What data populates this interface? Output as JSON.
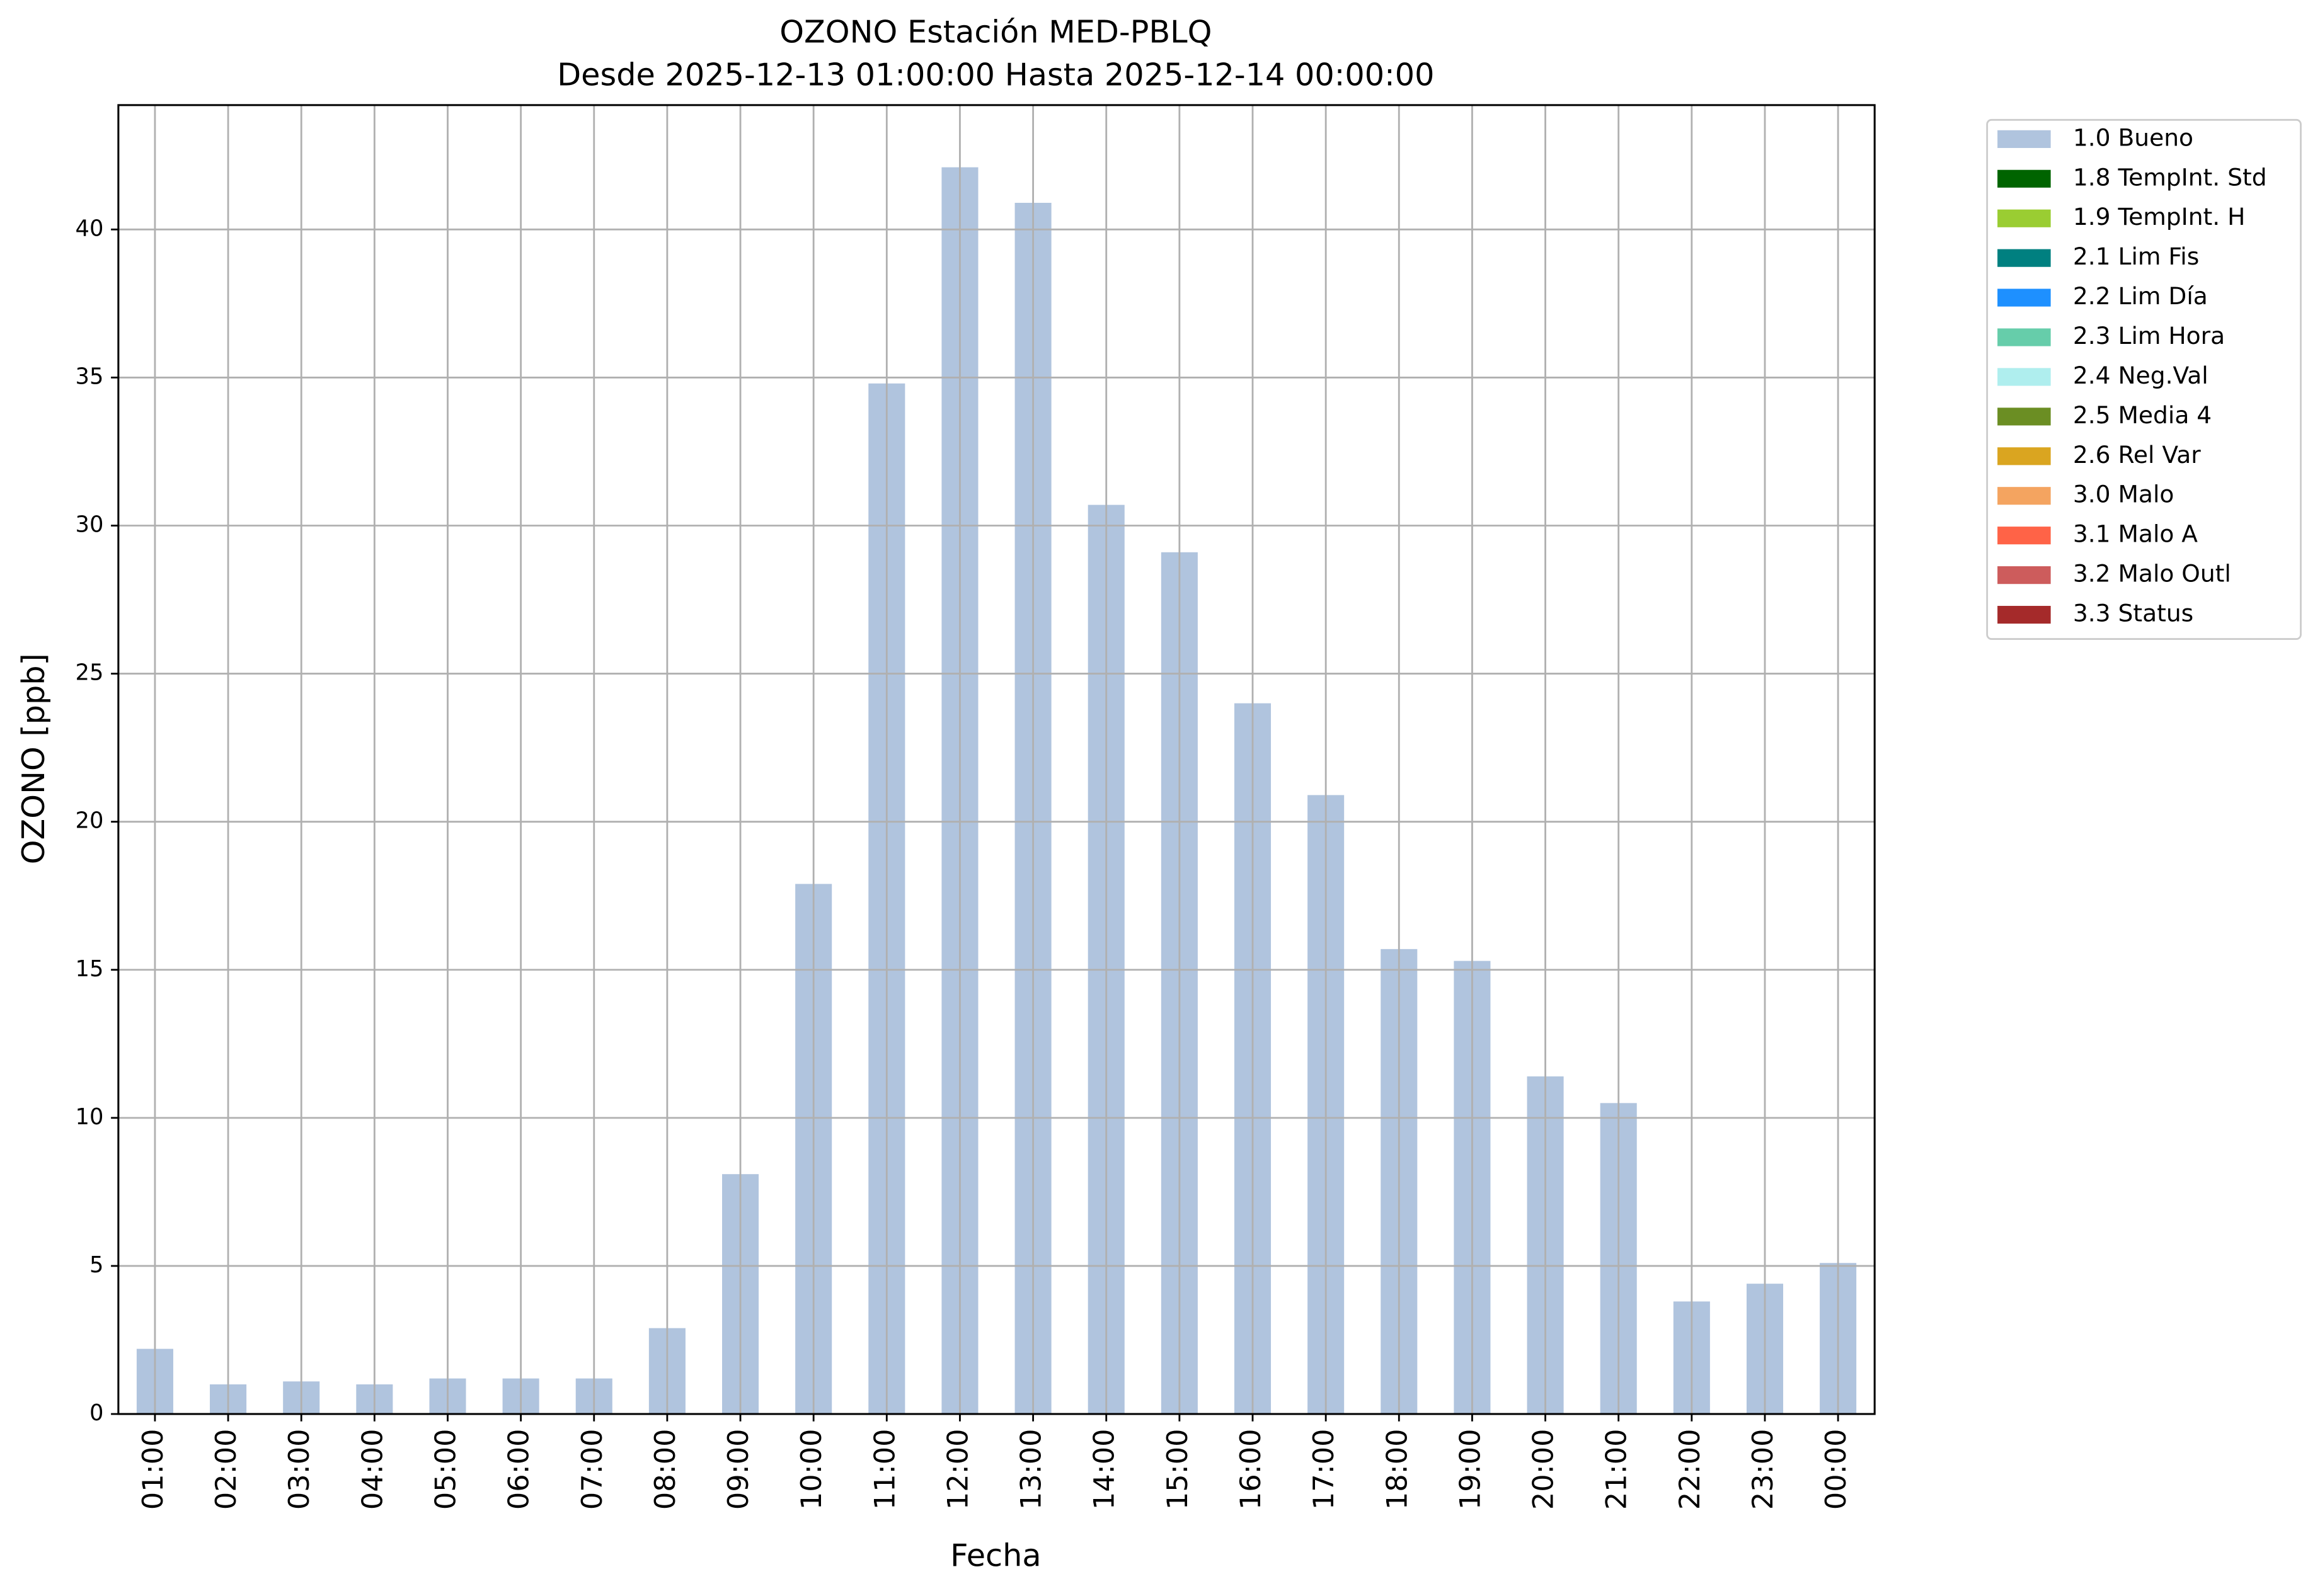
{
  "chart_data": {
    "type": "bar",
    "stacked": true,
    "title": "OZONO Estación MED-PBLQ",
    "subtitle": "Desde 2025-12-13 01:00:00 Hasta 2025-12-14 00:00:00",
    "x_label": "Fecha",
    "y_label": "OZONO [ppb]",
    "categories": [
      "01:00",
      "02:00",
      "03:00",
      "04:00",
      "05:00",
      "06:00",
      "07:00",
      "08:00",
      "09:00",
      "10:00",
      "11:00",
      "12:00",
      "13:00",
      "14:00",
      "15:00",
      "16:00",
      "17:00",
      "18:00",
      "19:00",
      "20:00",
      "21:00",
      "22:00",
      "23:00",
      "00:00"
    ],
    "series": [
      {
        "name": "1.0 Bueno",
        "color": "#b0c4de",
        "values": [
          2.2,
          1.0,
          1.1,
          1.0,
          1.2,
          1.2,
          1.2,
          2.9,
          8.1,
          17.9,
          34.8,
          42.1,
          40.9,
          30.7,
          29.1,
          24.0,
          20.9,
          15.7,
          15.3,
          11.4,
          10.5,
          3.8,
          4.4,
          5.1
        ]
      },
      {
        "name": "1.8 TempInt. Std",
        "color": "#006400",
        "values": [
          0,
          0,
          0,
          0,
          0,
          0,
          0,
          0,
          0,
          0,
          0,
          0,
          0,
          0,
          0,
          0,
          0,
          0,
          0,
          0,
          0,
          0,
          0,
          0
        ]
      },
      {
        "name": "1.9 TempInt. H",
        "color": "#9acd32",
        "values": [
          0,
          0,
          0,
          0,
          0,
          0,
          0,
          0,
          0,
          0,
          0,
          0,
          0,
          0,
          0,
          0,
          0,
          0,
          0,
          0,
          0,
          0,
          0,
          0
        ]
      },
      {
        "name": "2.1 Lim Fis",
        "color": "#008080",
        "values": [
          0,
          0,
          0,
          0,
          0,
          0,
          0,
          0,
          0,
          0,
          0,
          0,
          0,
          0,
          0,
          0,
          0,
          0,
          0,
          0,
          0,
          0,
          0,
          0
        ]
      },
      {
        "name": "2.2 Lim Día",
        "color": "#1e90ff",
        "values": [
          0,
          0,
          0,
          0,
          0,
          0,
          0,
          0,
          0,
          0,
          0,
          0,
          0,
          0,
          0,
          0,
          0,
          0,
          0,
          0,
          0,
          0,
          0,
          0
        ]
      },
      {
        "name": "2.3 Lim Hora",
        "color": "#66cdaa",
        "values": [
          0,
          0,
          0,
          0,
          0,
          0,
          0,
          0,
          0,
          0,
          0,
          0,
          0,
          0,
          0,
          0,
          0,
          0,
          0,
          0,
          0,
          0,
          0,
          0
        ]
      },
      {
        "name": "2.4 Neg.Val",
        "color": "#afeeee",
        "values": [
          0,
          0,
          0,
          0,
          0,
          0,
          0,
          0,
          0,
          0,
          0,
          0,
          0,
          0,
          0,
          0,
          0,
          0,
          0,
          0,
          0,
          0,
          0,
          0
        ]
      },
      {
        "name": "2.5 Media 4",
        "color": "#6b8e23",
        "values": [
          0,
          0,
          0,
          0,
          0,
          0,
          0,
          0,
          0,
          0,
          0,
          0,
          0,
          0,
          0,
          0,
          0,
          0,
          0,
          0,
          0,
          0,
          0,
          0
        ]
      },
      {
        "name": "2.6 Rel Var",
        "color": "#daa520",
        "values": [
          0,
          0,
          0,
          0,
          0,
          0,
          0,
          0,
          0,
          0,
          0,
          0,
          0,
          0,
          0,
          0,
          0,
          0,
          0,
          0,
          0,
          0,
          0,
          0
        ]
      },
      {
        "name": "3.0 Malo",
        "color": "#f4a460",
        "values": [
          0,
          0,
          0,
          0,
          0,
          0,
          0,
          0,
          0,
          0,
          0,
          0,
          0,
          0,
          0,
          0,
          0,
          0,
          0,
          0,
          0,
          0,
          0,
          0
        ]
      },
      {
        "name": "3.1 Malo A",
        "color": "#ff6347",
        "values": [
          0,
          0,
          0,
          0,
          0,
          0,
          0,
          0,
          0,
          0,
          0,
          0,
          0,
          0,
          0,
          0,
          0,
          0,
          0,
          0,
          0,
          0,
          0,
          0
        ]
      },
      {
        "name": "3.2 Malo Outl",
        "color": "#cd5c5c",
        "values": [
          0,
          0,
          0,
          0,
          0,
          0,
          0,
          0,
          0,
          0,
          0,
          0,
          0,
          0,
          0,
          0,
          0,
          0,
          0,
          0,
          0,
          0,
          0,
          0
        ]
      },
      {
        "name": "3.3 Status",
        "color": "#a52a2a",
        "values": [
          0,
          0,
          0,
          0,
          0,
          0,
          0,
          0,
          0,
          0,
          0,
          0,
          0,
          0,
          0,
          0,
          0,
          0,
          0,
          0,
          0,
          0,
          0,
          0
        ]
      }
    ],
    "ylim": [
      0,
      44.2
    ],
    "yticks": [
      0,
      5,
      10,
      15,
      20,
      25,
      30,
      35,
      40
    ],
    "grid": true,
    "legend": "outside-right"
  }
}
